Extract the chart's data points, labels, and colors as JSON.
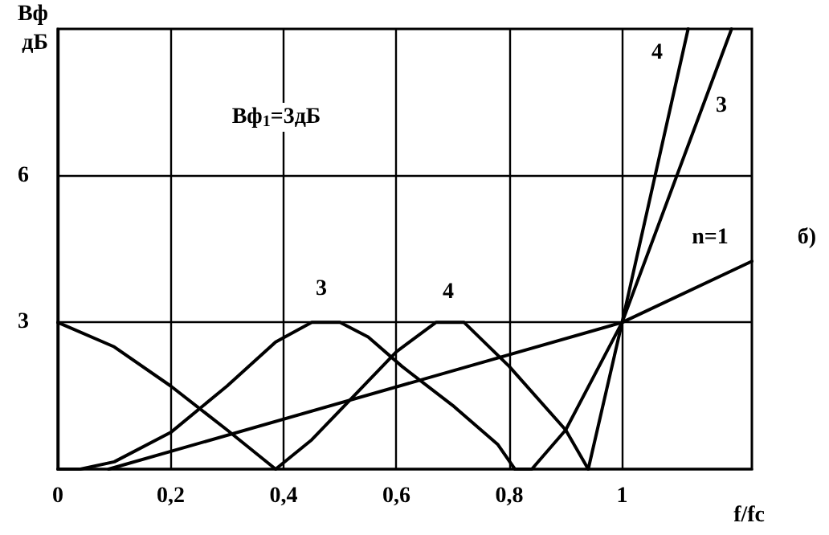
{
  "chart_data": {
    "type": "line",
    "xlabel": "f/fc",
    "ylabel": "Вф\nдБ",
    "xlim": [
      0,
      1.23
    ],
    "ylim": [
      0,
      9
    ],
    "xticks": [
      0,
      {
        "value": 0.2,
        "label": "0,2"
      },
      {
        "value": 0.4,
        "label": "0,4"
      },
      {
        "value": 0.6,
        "label": "0,6"
      },
      {
        "value": 0.8,
        "label": "0,8"
      },
      1
    ],
    "yticks": [
      3,
      6
    ],
    "grid": true,
    "marker": "none",
    "line_style": "solid",
    "series": [
      {
        "color": "#000000",
        "x": [
          0,
          0.1,
          0.2,
          0.3,
          0.386,
          0.45,
          0.55,
          0.6,
          0.67,
          0.72,
          0.8,
          0.9,
          0.94,
          1,
          1.117
        ],
        "values": [
          3,
          2.5,
          1.7,
          0.8,
          0,
          0.6,
          1.8,
          2.4,
          3,
          3,
          2.1,
          0.8,
          0,
          3,
          9
        ]
      },
      {
        "color": "#000000",
        "x": [
          0,
          0.04,
          0.1,
          0.2,
          0.3,
          0.386,
          0.45,
          0.5,
          0.55,
          0.61,
          0.7,
          0.78,
          0.81,
          0.84,
          0.9,
          1,
          1.194
        ],
        "values": [
          0,
          0,
          0.15,
          0.75,
          1.7,
          2.6,
          3,
          3,
          2.7,
          2.1,
          1.3,
          0.5,
          0,
          0,
          0.8,
          3,
          9
        ]
      },
      {
        "color": "#000000",
        "x": [
          0.09,
          1,
          1.23
        ],
        "values": [
          0,
          3,
          4.25
        ]
      }
    ],
    "annotations": [
      "3",
      "4",
      "4",
      "3",
      "n=1",
      "Вф$_{1}$=3дБ",
      "б)"
    ]
  }
}
